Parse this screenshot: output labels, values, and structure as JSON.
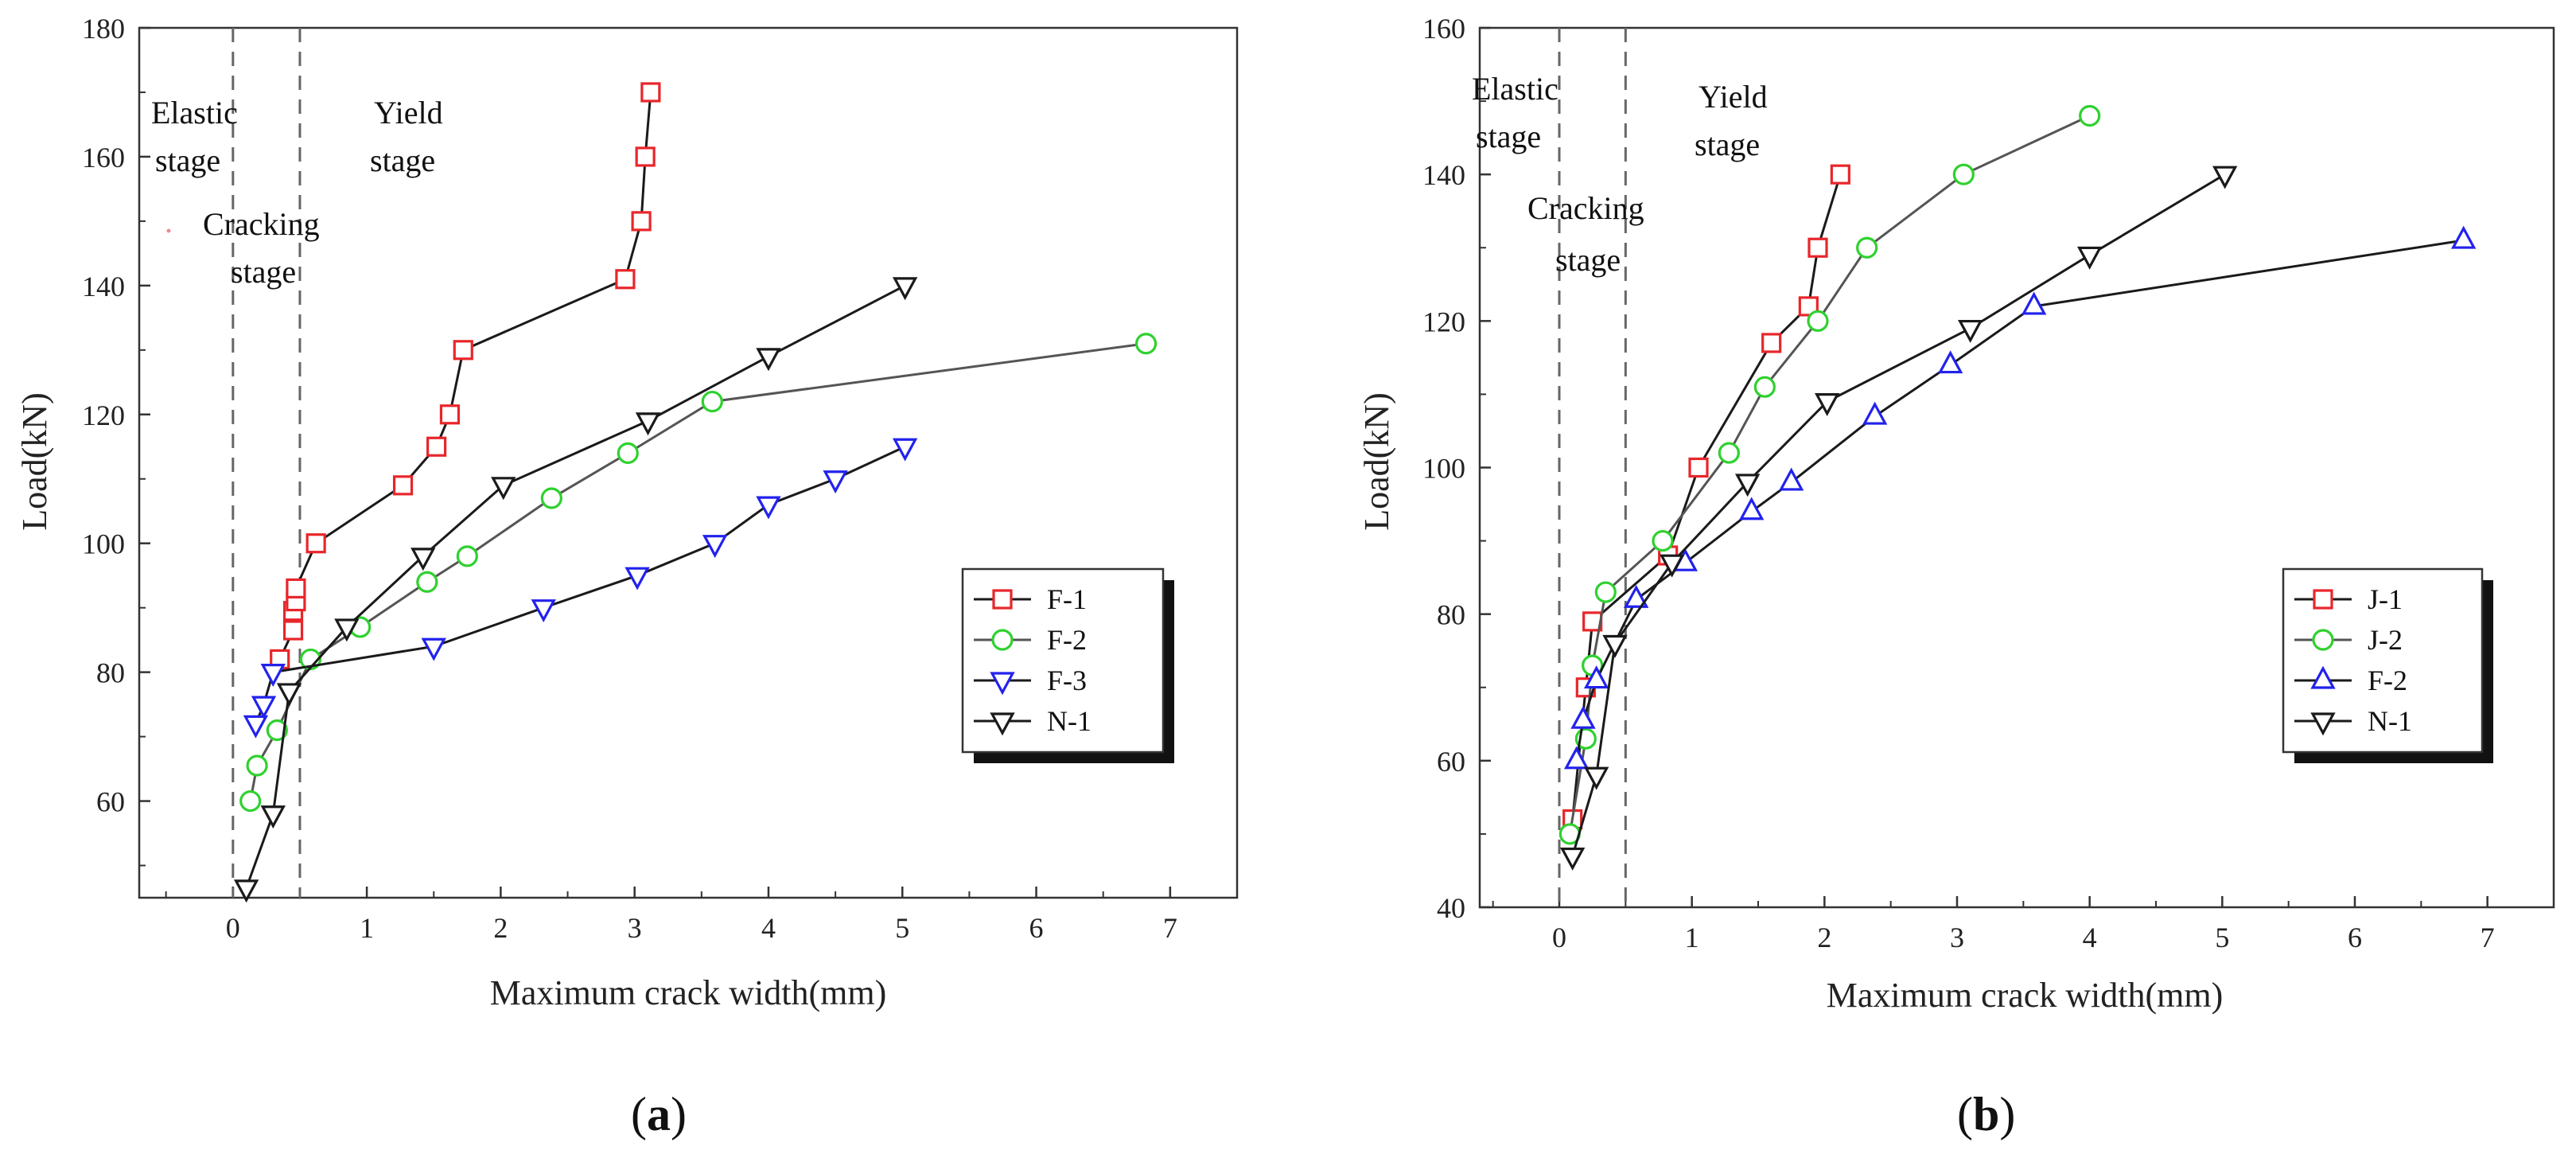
{
  "chart_data": [
    {
      "type": "line",
      "panel_label": "a",
      "xlabel": "Maximum crack width(mm)",
      "ylabel": "Load(kN)",
      "xlim": [
        -0.7,
        7.5
      ],
      "ylim": [
        45,
        180
      ],
      "x_ticks": [
        "0",
        "1",
        "2",
        "3",
        "4",
        "5",
        "6",
        "7"
      ],
      "y_ticks": [
        "60",
        "80",
        "100",
        "120",
        "140",
        "160",
        "180"
      ],
      "stage_lines": [
        0,
        0.5
      ],
      "stage_labels": {
        "elastic": [
          "Elastic",
          "stage"
        ],
        "cracking": [
          "Cracking",
          "stage"
        ],
        "yield": [
          "Yield",
          "stage"
        ]
      },
      "legend_position": "right",
      "series": [
        {
          "name": "F-1",
          "color": "#e8262a",
          "marker": "square",
          "x": [
            0.35,
            0.45,
            0.45,
            0.47,
            0.47,
            0.62,
            1.27,
            1.52,
            1.62,
            1.72,
            2.93,
            3.05,
            3.08,
            3.12
          ],
          "y": [
            82,
            86.5,
            89.5,
            91,
            93,
            100,
            109,
            115,
            120,
            130,
            141,
            150,
            160,
            170
          ]
        },
        {
          "name": "F-2",
          "color": "#2fd12f",
          "marker": "circle",
          "x": [
            0.13,
            0.18,
            0.33,
            0.58,
            0.95,
            1.45,
            1.75,
            2.38,
            2.95,
            3.58,
            6.82
          ],
          "y": [
            60,
            65.5,
            71,
            82,
            87,
            94,
            98,
            107,
            114,
            122,
            131
          ]
        },
        {
          "name": "F-3",
          "color": "#2222ee",
          "marker": "triangle-down",
          "x": [
            0.17,
            0.23,
            0.3,
            1.5,
            2.32,
            3.02,
            3.6,
            4.0,
            4.5,
            5.02
          ],
          "y": [
            72,
            75,
            80,
            84,
            90,
            95,
            100,
            106,
            110,
            115
          ]
        },
        {
          "name": "N-1",
          "color": "#1a1a1a",
          "marker": "triangle-down",
          "x": [
            0.1,
            0.3,
            0.42,
            0.85,
            1.42,
            2.02,
            3.1,
            4.0,
            5.02
          ],
          "y": [
            46.5,
            58,
            77,
            87,
            98,
            109,
            119,
            129,
            140
          ]
        }
      ]
    },
    {
      "type": "line",
      "panel_label": "b",
      "xlabel": "Maximum crack width(mm)",
      "ylabel": "Load(kN)",
      "xlim": [
        -0.6,
        7.5
      ],
      "ylim": [
        40,
        160
      ],
      "x_ticks": [
        "0",
        "1",
        "2",
        "3",
        "4",
        "5",
        "6",
        "7"
      ],
      "y_ticks": [
        "40",
        "60",
        "80",
        "100",
        "120",
        "140",
        "160"
      ],
      "stage_lines": [
        0,
        0.5
      ],
      "stage_labels": {
        "elastic": [
          "Elastic",
          "stage"
        ],
        "cracking": [
          "Cracking",
          "stage"
        ],
        "yield": [
          "Yield",
          "stage"
        ]
      },
      "legend_position": "right",
      "series": [
        {
          "name": "J-1",
          "color": "#e8262a",
          "marker": "square",
          "x": [
            0.1,
            0.2,
            0.25,
            0.82,
            1.05,
            1.6,
            1.88,
            1.95,
            2.12
          ],
          "y": [
            52,
            70,
            79,
            88,
            100,
            117,
            122,
            130,
            140
          ]
        },
        {
          "name": "J-2",
          "color": "#2fd12f",
          "marker": "circle",
          "x": [
            0.08,
            0.2,
            0.25,
            0.35,
            0.78,
            1.28,
            1.55,
            1.95,
            2.32,
            3.05,
            4.0
          ],
          "y": [
            50,
            63,
            73,
            83,
            90,
            102,
            111,
            120,
            130,
            140,
            148
          ]
        },
        {
          "name": "F-2",
          "color": "#2222ee",
          "marker": "triangle-up",
          "x": [
            0.13,
            0.18,
            0.28,
            0.58,
            0.95,
            1.45,
            1.75,
            2.38,
            2.95,
            3.58,
            6.82
          ],
          "y": [
            60,
            65.5,
            71,
            82,
            87,
            94,
            98,
            107,
            114,
            122,
            131
          ]
        },
        {
          "name": "N-1",
          "color": "#1a1a1a",
          "marker": "triangle-down",
          "x": [
            0.1,
            0.28,
            0.42,
            0.85,
            1.42,
            2.02,
            3.1,
            4.0,
            5.02
          ],
          "y": [
            47,
            58,
            76,
            87,
            98,
            109,
            119,
            129,
            140
          ]
        }
      ]
    }
  ]
}
